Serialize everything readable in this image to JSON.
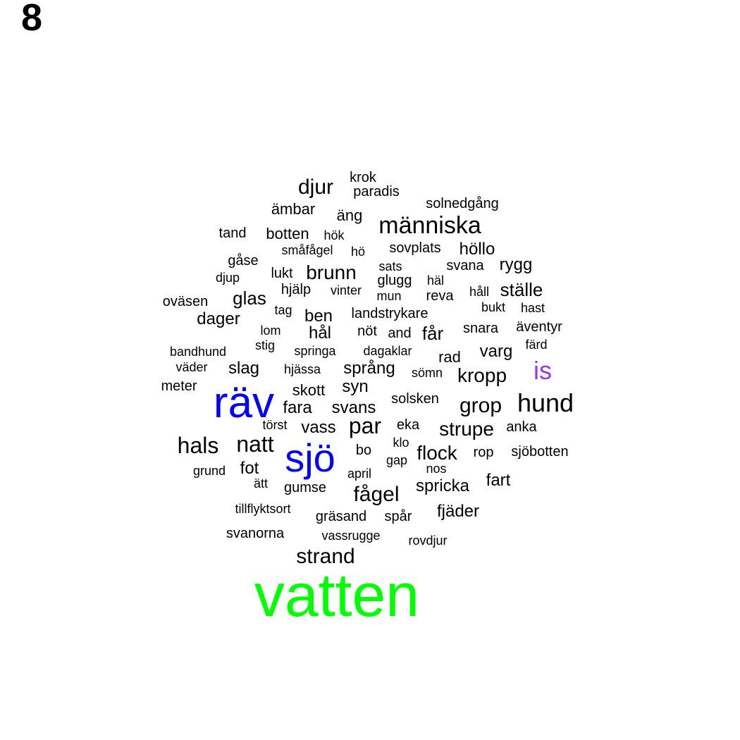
{
  "panel_label": "8",
  "colors": {
    "default": "#000000",
    "blue": "#0000ff",
    "green": "#00ff00",
    "purple": "#9933ee"
  },
  "words": [
    {
      "text": "vatten",
      "color": "#00ff00"
    },
    {
      "text": "räv",
      "color": "#0000ff"
    },
    {
      "text": "sjö",
      "color": "#0000ff"
    },
    {
      "text": "is",
      "color": "#9933ee"
    },
    {
      "text": "hund"
    },
    {
      "text": "människa"
    },
    {
      "text": "djur"
    },
    {
      "text": "fågel"
    },
    {
      "text": "strand"
    },
    {
      "text": "hals"
    },
    {
      "text": "natt"
    },
    {
      "text": "par"
    },
    {
      "text": "grop"
    },
    {
      "text": "strupe"
    },
    {
      "text": "kropp"
    },
    {
      "text": "brunn"
    },
    {
      "text": "flock"
    },
    {
      "text": "fara"
    },
    {
      "text": "svans"
    },
    {
      "text": "vass"
    },
    {
      "text": "slag"
    },
    {
      "text": "språng"
    },
    {
      "text": "varg"
    },
    {
      "text": "ställe"
    },
    {
      "text": "hål"
    },
    {
      "text": "ben"
    },
    {
      "text": "får"
    },
    {
      "text": "glas"
    },
    {
      "text": "dager"
    },
    {
      "text": "fot"
    },
    {
      "text": "spricka"
    },
    {
      "text": "fart"
    },
    {
      "text": "fjäder"
    },
    {
      "text": "skott"
    },
    {
      "text": "syn"
    },
    {
      "text": "rygg"
    },
    {
      "text": "höllo"
    },
    {
      "text": "botten"
    },
    {
      "text": "äng"
    },
    {
      "text": "krok"
    },
    {
      "text": "paradis"
    },
    {
      "text": "ämbar"
    },
    {
      "text": "solnedgång"
    },
    {
      "text": "tand"
    },
    {
      "text": "hök"
    },
    {
      "text": "småfågel"
    },
    {
      "text": "hö"
    },
    {
      "text": "sovplats"
    },
    {
      "text": "gåse"
    },
    {
      "text": "djup"
    },
    {
      "text": "lukt"
    },
    {
      "text": "sats"
    },
    {
      "text": "svana"
    },
    {
      "text": "glugg"
    },
    {
      "text": "häl"
    },
    {
      "text": "hjälp"
    },
    {
      "text": "vinter"
    },
    {
      "text": "mun"
    },
    {
      "text": "reva"
    },
    {
      "text": "håll"
    },
    {
      "text": "oväsen"
    },
    {
      "text": "tag"
    },
    {
      "text": "landstrykare"
    },
    {
      "text": "bukt"
    },
    {
      "text": "hast"
    },
    {
      "text": "lom"
    },
    {
      "text": "nöt"
    },
    {
      "text": "and"
    },
    {
      "text": "snara"
    },
    {
      "text": "äventyr"
    },
    {
      "text": "stig"
    },
    {
      "text": "färd"
    },
    {
      "text": "bandhund"
    },
    {
      "text": "springa"
    },
    {
      "text": "dagaklar"
    },
    {
      "text": "rad"
    },
    {
      "text": "väder"
    },
    {
      "text": "hjässa"
    },
    {
      "text": "sömn"
    },
    {
      "text": "meter"
    },
    {
      "text": "solsken"
    },
    {
      "text": "eka"
    },
    {
      "text": "anka"
    },
    {
      "text": "törst"
    },
    {
      "text": "klo"
    },
    {
      "text": "bo"
    },
    {
      "text": "rop"
    },
    {
      "text": "sjöbotten"
    },
    {
      "text": "gap"
    },
    {
      "text": "grund"
    },
    {
      "text": "nos"
    },
    {
      "text": "april"
    },
    {
      "text": "ätt"
    },
    {
      "text": "gumse"
    },
    {
      "text": "tillflyktsort"
    },
    {
      "text": "gräsand"
    },
    {
      "text": "spår"
    },
    {
      "text": "svanorna"
    },
    {
      "text": "vassrugge"
    },
    {
      "text": "rovdjur"
    }
  ]
}
